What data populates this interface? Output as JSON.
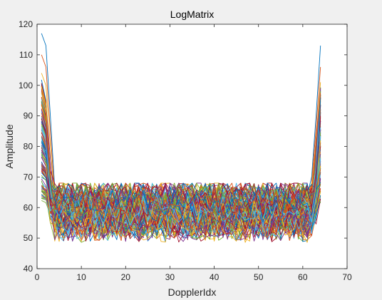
{
  "window": {
    "background": "#f0f0f0"
  },
  "chart_data": {
    "type": "line",
    "title": "LogMatrix",
    "xlabel": "DopplerIdx",
    "ylabel": "Amplitude",
    "xlim": [
      0,
      70
    ],
    "ylim": [
      40,
      120
    ],
    "xticks": [
      0,
      10,
      20,
      30,
      40,
      50,
      60,
      70
    ],
    "yticks": [
      40,
      50,
      60,
      70,
      80,
      90,
      100,
      110,
      120
    ],
    "grid": false,
    "legend": "none",
    "x": [
      1,
      2,
      3,
      4,
      5,
      6,
      7,
      8,
      9,
      10,
      11,
      12,
      13,
      14,
      15,
      16,
      17,
      18,
      19,
      20,
      21,
      22,
      23,
      24,
      25,
      26,
      27,
      28,
      29,
      30,
      31,
      32,
      33,
      34,
      35,
      36,
      37,
      38,
      39,
      40,
      41,
      42,
      43,
      44,
      45,
      46,
      47,
      48,
      49,
      50,
      51,
      52,
      53,
      54,
      55,
      56,
      57,
      58,
      59,
      60,
      61,
      62,
      63,
      64
    ],
    "series_count": 128,
    "series_colors": [
      "#0072bd",
      "#d95319",
      "#edb120",
      "#7e2f8e",
      "#77ac30",
      "#4dbeee",
      "#a2142f"
    ],
    "series": [
      {
        "values": [
          117,
          113,
          90,
          66,
          58,
          60,
          62,
          57,
          61,
          59,
          63,
          58,
          60,
          62,
          59,
          61,
          57,
          60,
          63,
          58,
          61,
          59,
          62,
          60,
          58,
          61,
          63,
          59,
          60,
          62,
          58,
          61,
          59,
          60,
          62,
          57,
          61,
          60,
          59,
          63,
          58,
          60,
          62,
          59,
          61,
          58,
          60,
          62,
          59,
          61,
          58,
          60,
          63,
          59,
          61,
          58,
          60,
          62,
          59,
          61,
          64,
          70,
          90,
          113
        ]
      },
      {
        "values": [
          110,
          106,
          85,
          64,
          56,
          59,
          61,
          55,
          60,
          58,
          62,
          57,
          59,
          61,
          58,
          60,
          56,
          59,
          62,
          57,
          60,
          58,
          61,
          59,
          57,
          60,
          62,
          58,
          59,
          61,
          57,
          60,
          58,
          59,
          61,
          56,
          60,
          59,
          58,
          62,
          57,
          59,
          61,
          58,
          60,
          57,
          59,
          61,
          58,
          60,
          57,
          59,
          62,
          58,
          60,
          57,
          59,
          61,
          58,
          60,
          62,
          68,
          86,
          106
        ]
      },
      {
        "values": [
          104,
          100,
          80,
          62,
          55,
          58,
          60,
          54,
          59,
          57,
          61,
          56,
          58,
          60,
          57,
          59,
          55,
          58,
          61,
          56,
          59,
          57,
          60,
          58,
          56,
          59,
          61,
          57,
          58,
          60,
          56,
          59,
          57,
          58,
          60,
          55,
          59,
          58,
          57,
          61,
          56,
          58,
          60,
          57,
          59,
          56,
          58,
          60,
          57,
          59,
          56,
          58,
          61,
          57,
          59,
          56,
          58,
          60,
          57,
          59,
          61,
          66,
          82,
          101
        ]
      },
      {
        "values": [
          98,
          94,
          76,
          61,
          57,
          60,
          58,
          56,
          61,
          59,
          57,
          60,
          62,
          58,
          56,
          61,
          59,
          57,
          60,
          62,
          58,
          56,
          61,
          59,
          57,
          60,
          58,
          62,
          56,
          59,
          61,
          57,
          60,
          58,
          56,
          62,
          59,
          57,
          61,
          60,
          58,
          56,
          62,
          59,
          57,
          61,
          60,
          58,
          56,
          62,
          59,
          57,
          61,
          60,
          58,
          56,
          62,
          59,
          57,
          61,
          60,
          65,
          78,
          96
        ]
      },
      {
        "values": [
          92,
          88,
          72,
          60,
          58,
          62,
          59,
          63,
          57,
          60,
          64,
          58,
          61,
          59,
          63,
          57,
          60,
          64,
          58,
          61,
          59,
          63,
          57,
          60,
          64,
          58,
          61,
          59,
          63,
          57,
          60,
          64,
          58,
          61,
          59,
          63,
          57,
          60,
          64,
          58,
          61,
          59,
          63,
          57,
          60,
          64,
          58,
          61,
          59,
          63,
          57,
          60,
          64,
          58,
          61,
          59,
          63,
          57,
          60,
          64,
          62,
          64,
          75,
          91
        ]
      },
      {
        "values": [
          86,
          82,
          69,
          60,
          56,
          53,
          57,
          55,
          52,
          56,
          54,
          58,
          53,
          55,
          57,
          52,
          56,
          54,
          58,
          53,
          55,
          57,
          52,
          56,
          54,
          58,
          53,
          55,
          57,
          52,
          56,
          54,
          58,
          53,
          55,
          57,
          52,
          56,
          54,
          58,
          53,
          55,
          57,
          52,
          56,
          54,
          58,
          53,
          55,
          57,
          52,
          56,
          54,
          58,
          53,
          55,
          57,
          52,
          56,
          54,
          58,
          62,
          72,
          86
        ]
      },
      {
        "values": [
          80,
          76,
          66,
          58,
          65,
          63,
          66,
          62,
          64,
          67,
          63,
          65,
          62,
          66,
          64,
          63,
          67,
          62,
          65,
          64,
          66,
          63,
          62,
          67,
          65,
          64,
          63,
          66,
          62,
          65,
          67,
          64,
          63,
          66,
          62,
          65,
          64,
          67,
          63,
          62,
          66,
          65,
          64,
          63,
          67,
          62,
          66,
          65,
          64,
          63,
          67,
          62,
          66,
          65,
          64,
          63,
          67,
          62,
          66,
          65,
          64,
          63,
          70,
          80
        ]
      },
      {
        "values": [
          75,
          72,
          64,
          57,
          52,
          55,
          50,
          54,
          53,
          51,
          55,
          52,
          54,
          50,
          53,
          55,
          51,
          54,
          52,
          53,
          55,
          50,
          54,
          52,
          51,
          55,
          53,
          54,
          50,
          52,
          55,
          51,
          53,
          54,
          52,
          50,
          55,
          53,
          51,
          54,
          52,
          55,
          50,
          53,
          54,
          51,
          52,
          55,
          53,
          50,
          54,
          51,
          52,
          55,
          53,
          54,
          50,
          52,
          55,
          51,
          53,
          58,
          66,
          75
        ]
      }
    ]
  }
}
